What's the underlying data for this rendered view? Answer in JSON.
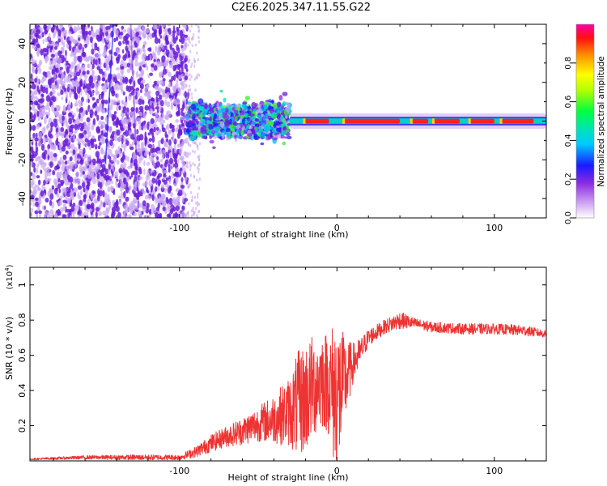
{
  "title": "C2E6.2025.347.11.55.G22",
  "colors": {
    "snr_line": "#ee3333",
    "spectrum_main": "#6a1ed8",
    "spectrum_light": "#c9a6f2",
    "axis": "#000000"
  },
  "chart_data": [
    {
      "type": "heatmap",
      "name": "spectrogram",
      "xlabel": "Height of straight line (km)",
      "ylabel": "Frequency (Hz)",
      "xlim": [
        -195,
        133
      ],
      "ylim": [
        -50,
        50
      ],
      "xticks": [
        -100,
        0,
        100
      ],
      "xtick_labels": [
        "-100",
        "0",
        "100"
      ],
      "yticks": [
        -40,
        -20,
        0,
        20,
        40
      ],
      "ytick_labels": [
        "-40",
        "-20",
        "0",
        "20",
        "40"
      ],
      "description_of_signal": {
        "noise_region_km": [
          -195,
          -95
        ],
        "dispersed_region_km": [
          -95,
          -30
        ],
        "coherent_tone_region_km": [
          -30,
          133
        ],
        "tone_frequency_hz": 0
      },
      "colorbar": {
        "label": "Normalized spectral amplitude",
        "range": [
          0,
          1
        ],
        "ticks": [
          0,
          0.2,
          0.4,
          0.6,
          0.8
        ],
        "tick_labels": [
          "0.0",
          "0.2",
          "0.4",
          "0.6",
          "0.8"
        ]
      }
    },
    {
      "type": "line",
      "name": "snr",
      "xlabel": "Height of straight line (km)",
      "ylabel": "SNR (10 * v/v)",
      "y_scale_label": "(x10",
      "y_scale_exp": "4",
      "xlim": [
        -195,
        133
      ],
      "ylim": [
        0,
        1.1
      ],
      "xticks": [
        -100,
        0,
        100
      ],
      "xtick_labels": [
        "-100",
        "0",
        "100"
      ],
      "yticks": [
        0.2,
        0.4,
        0.6,
        0.8,
        1.0
      ],
      "ytick_labels": [
        "0.2",
        "0.4",
        "0.6",
        "0.8",
        "1"
      ],
      "series": [
        {
          "name": "SNR",
          "x": [
            -195,
            -160,
            -130,
            -100,
            -90,
            -80,
            -70,
            -60,
            -50,
            -40,
            -30,
            -25,
            -20,
            -15,
            -10,
            -5,
            0,
            5,
            10,
            15,
            20,
            30,
            40,
            50,
            60,
            80,
            100,
            120,
            133
          ],
          "y": [
            0.01,
            0.02,
            0.02,
            0.02,
            0.05,
            0.1,
            0.14,
            0.17,
            0.21,
            0.24,
            0.28,
            0.32,
            0.36,
            0.42,
            0.47,
            0.44,
            0.35,
            0.45,
            0.55,
            0.62,
            0.7,
            0.76,
            0.8,
            0.78,
            0.76,
            0.75,
            0.75,
            0.74,
            0.72
          ],
          "spread": [
            0.005,
            0.01,
            0.015,
            0.015,
            0.03,
            0.05,
            0.06,
            0.08,
            0.1,
            0.14,
            0.2,
            0.3,
            0.32,
            0.3,
            0.28,
            0.3,
            0.5,
            0.25,
            0.12,
            0.08,
            0.05,
            0.04,
            0.05,
            0.03,
            0.03,
            0.03,
            0.03,
            0.03,
            0.02
          ]
        }
      ]
    }
  ]
}
